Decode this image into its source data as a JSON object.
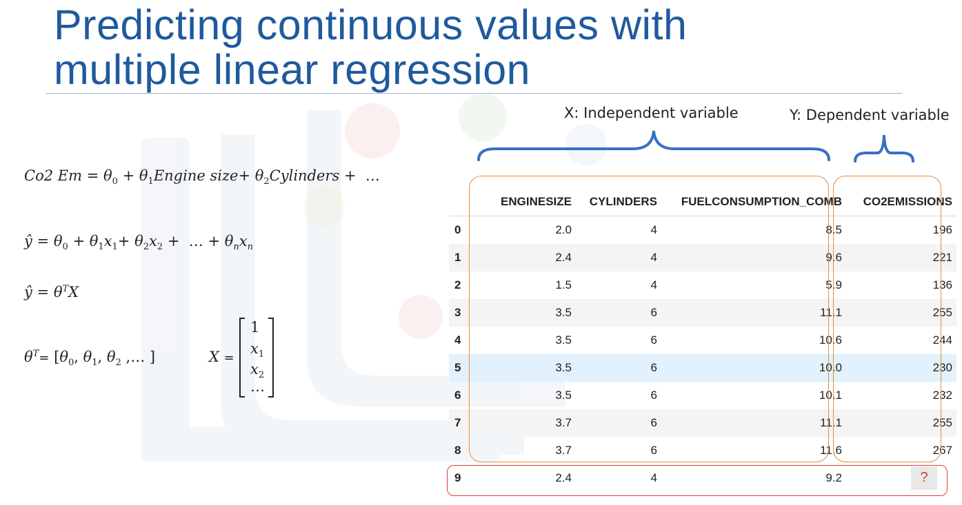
{
  "slide": {
    "title_line1": "Predicting continuous values with",
    "title_line2": "multiple linear regression"
  },
  "equations": {
    "co2_lhs": "Co2 Em",
    "co2_engine": "Engine size",
    "co2_cylinders": "Cylinders",
    "ellipsis": "…",
    "theta_T_eq": "θ",
    "x_eq_label": "X"
  },
  "labels": {
    "independent": "X: Independent variable",
    "dependent": "Y: Dependent variable"
  },
  "table": {
    "headers": [
      "",
      "ENGINESIZE",
      "CYLINDERS",
      "FUELCONSUMPTION_COMB",
      "CO2EMISSIONS"
    ],
    "rows": [
      [
        "0",
        "2.0",
        "4",
        "8.5",
        "196"
      ],
      [
        "1",
        "2.4",
        "4",
        "9.6",
        "221"
      ],
      [
        "2",
        "1.5",
        "4",
        "5.9",
        "136"
      ],
      [
        "3",
        "3.5",
        "6",
        "11.1",
        "255"
      ],
      [
        "4",
        "3.5",
        "6",
        "10.6",
        "244"
      ],
      [
        "5",
        "3.5",
        "6",
        "10.0",
        "230"
      ],
      [
        "6",
        "3.5",
        "6",
        "10.1",
        "232"
      ],
      [
        "7",
        "3.7",
        "6",
        "11.1",
        "255"
      ],
      [
        "8",
        "3.7",
        "6",
        "11.6",
        "267"
      ],
      [
        "9",
        "2.4",
        "4",
        "9.2",
        "?"
      ]
    ],
    "highlighted_row": 5
  },
  "colors": {
    "title": "#1f5a9e",
    "brace_blue": "#3a6fc4",
    "box_orange": "#e88a3a",
    "box_red": "#e03a3a"
  }
}
